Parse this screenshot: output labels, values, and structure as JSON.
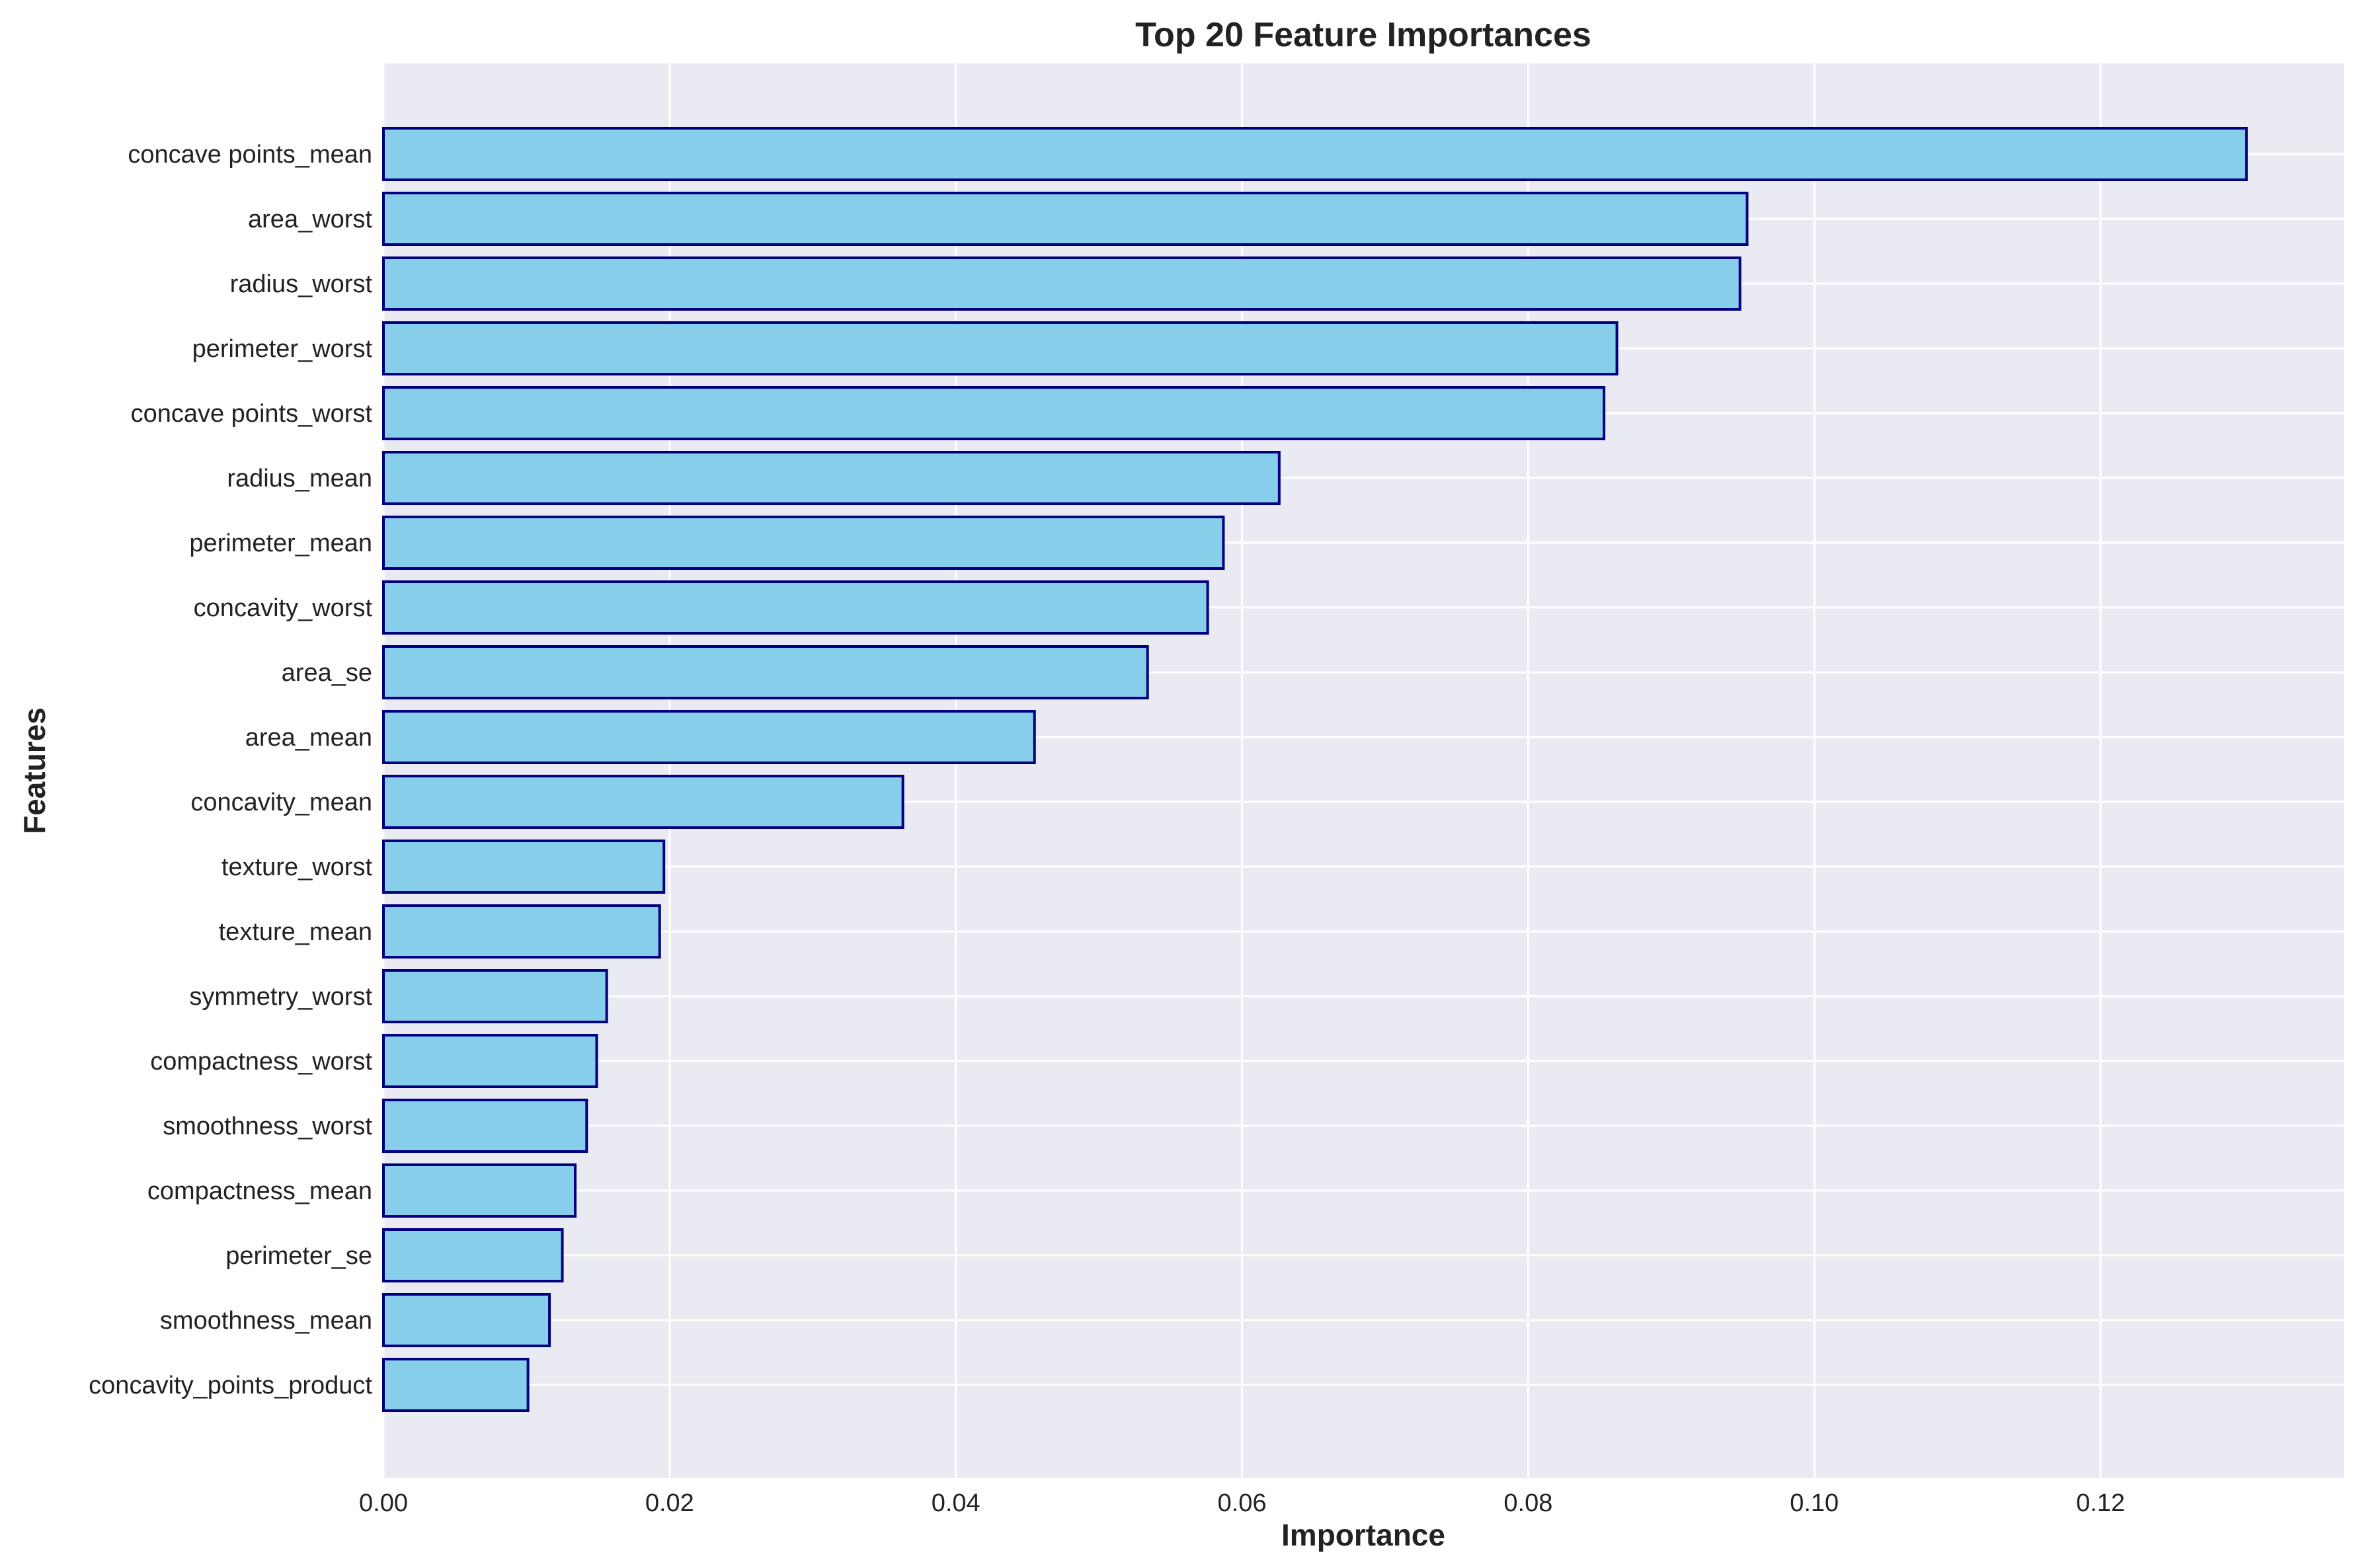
{
  "chart_data": {
    "type": "bar",
    "orientation": "horizontal",
    "title": "Top 20 Feature Importances",
    "xlabel": "Importance",
    "ylabel": "Features",
    "xlim": [
      0,
      0.137
    ],
    "xticks": [
      0.0,
      0.02,
      0.04,
      0.06,
      0.08,
      0.1,
      0.12
    ],
    "xtick_labels": [
      "0.00",
      "0.02",
      "0.04",
      "0.06",
      "0.08",
      "0.10",
      "0.12"
    ],
    "grid": true,
    "colors": {
      "bar_fill": "#87CEEB",
      "bar_edge": "#000080",
      "plot_bg": "#EAEAF2",
      "grid": "#FFFFFF"
    },
    "categories": [
      "concave points_mean",
      "area_worst",
      "radius_worst",
      "perimeter_worst",
      "concave points_worst",
      "radius_mean",
      "perimeter_mean",
      "concavity_worst",
      "area_se",
      "area_mean",
      "concavity_mean",
      "texture_worst",
      "texture_mean",
      "symmetry_worst",
      "compactness_worst",
      "smoothness_worst",
      "compactness_mean",
      "perimeter_se",
      "smoothness_mean",
      "concavity_points_product"
    ],
    "values": [
      0.1302,
      0.0953,
      0.0948,
      0.0862,
      0.0853,
      0.0626,
      0.0587,
      0.0576,
      0.0534,
      0.0455,
      0.0363,
      0.0196,
      0.0193,
      0.0156,
      0.0149,
      0.0142,
      0.0134,
      0.0125,
      0.0116,
      0.0101
    ]
  }
}
